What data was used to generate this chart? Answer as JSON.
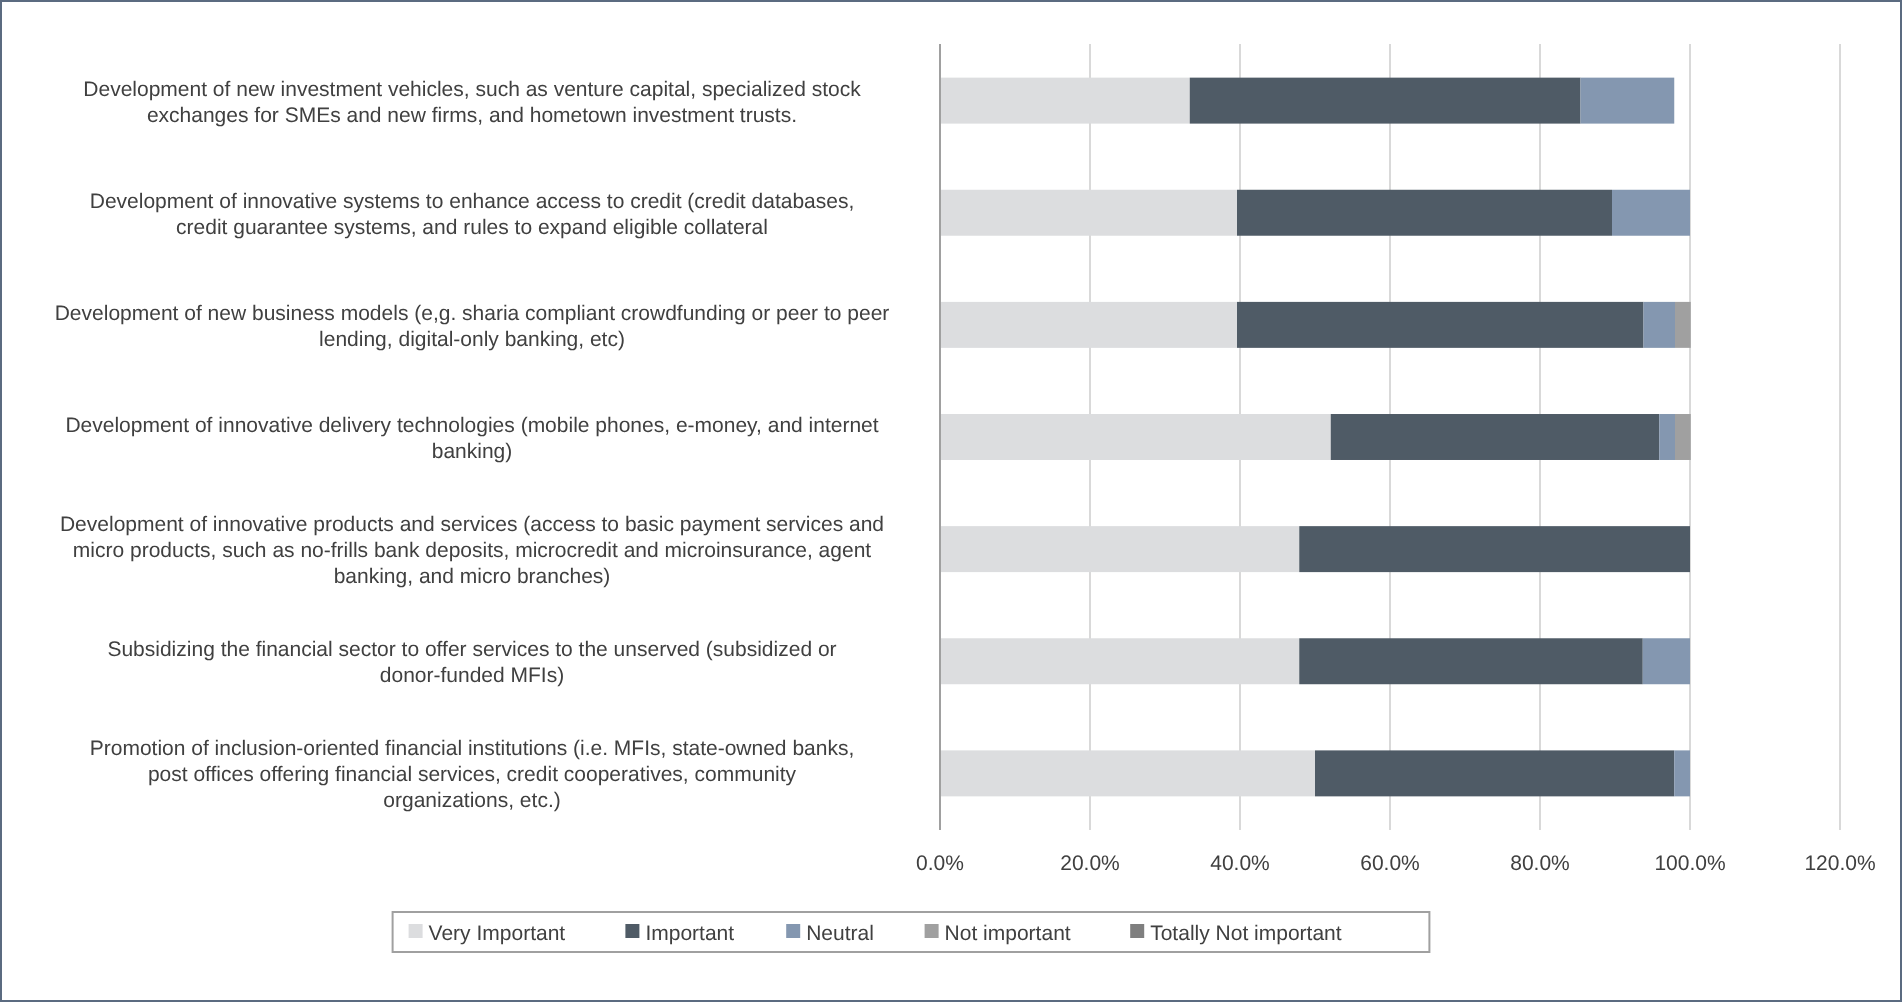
{
  "chart_data": {
    "type": "bar",
    "orientation": "horizontal",
    "stacked": true,
    "categories": [
      "Development of new investment vehicles, such as venture capital, specialized stock exchanges for SMEs and new firms, and hometown investment trusts.",
      "Development of innovative systems to enhance access to credit (credit databases, credit guarantee systems, and rules to expand eligible collateral",
      "Development of new business models (e,g. sharia compliant crowdfunding or peer to peer lending, digital-only banking, etc)",
      "Development of innovative delivery technologies (mobile phones, e-money, and internet banking)",
      "Development of innovative products and services (access to basic payment services and micro products, such as no-frills bank deposits, microcredit and microinsurance, agent banking, and micro branches)",
      "Subsidizing the financial sector to offer services to the unserved (subsidized or donor-funded MFIs)",
      "Promotion of inclusion-oriented financial institutions (i.e. MFIs, state-owned banks, post offices offering financial services, credit cooperatives, community organizations, etc.)"
    ],
    "series": [
      {
        "name": "Very Important",
        "color": "#dcdddf",
        "values": [
          33.3,
          39.6,
          39.6,
          52.1,
          47.9,
          47.9,
          50
        ]
      },
      {
        "name": "Important",
        "color": "#4f5b66",
        "values": [
          52.1,
          50,
          54.2,
          43.8,
          52.1,
          45.8,
          47.9
        ]
      },
      {
        "name": "Neutral",
        "color": "#8497b0",
        "values": [
          12.5,
          10.4,
          4.2,
          2.1,
          0,
          6.3,
          2.1
        ]
      },
      {
        "name": "Not important",
        "color": "#a0a0a0",
        "values": [
          0,
          0,
          2.1,
          2.1,
          0,
          0,
          0
        ]
      },
      {
        "name": "Totally Not important",
        "color": "#7f7f7f",
        "values": [
          0,
          0,
          0,
          0,
          0,
          0,
          0
        ]
      }
    ],
    "xlim": [
      0,
      120
    ],
    "xticks": [
      {
        "value": 0,
        "label": "0.0%"
      },
      {
        "value": 20,
        "label": "20.0%"
      },
      {
        "value": 40,
        "label": "40.0%"
      },
      {
        "value": 60,
        "label": "60.0%"
      },
      {
        "value": 80,
        "label": "80.0%"
      },
      {
        "value": 100,
        "label": "100.0%"
      },
      {
        "value": 120,
        "label": "120.0%"
      }
    ],
    "grid": "x",
    "legend": "bottom"
  }
}
